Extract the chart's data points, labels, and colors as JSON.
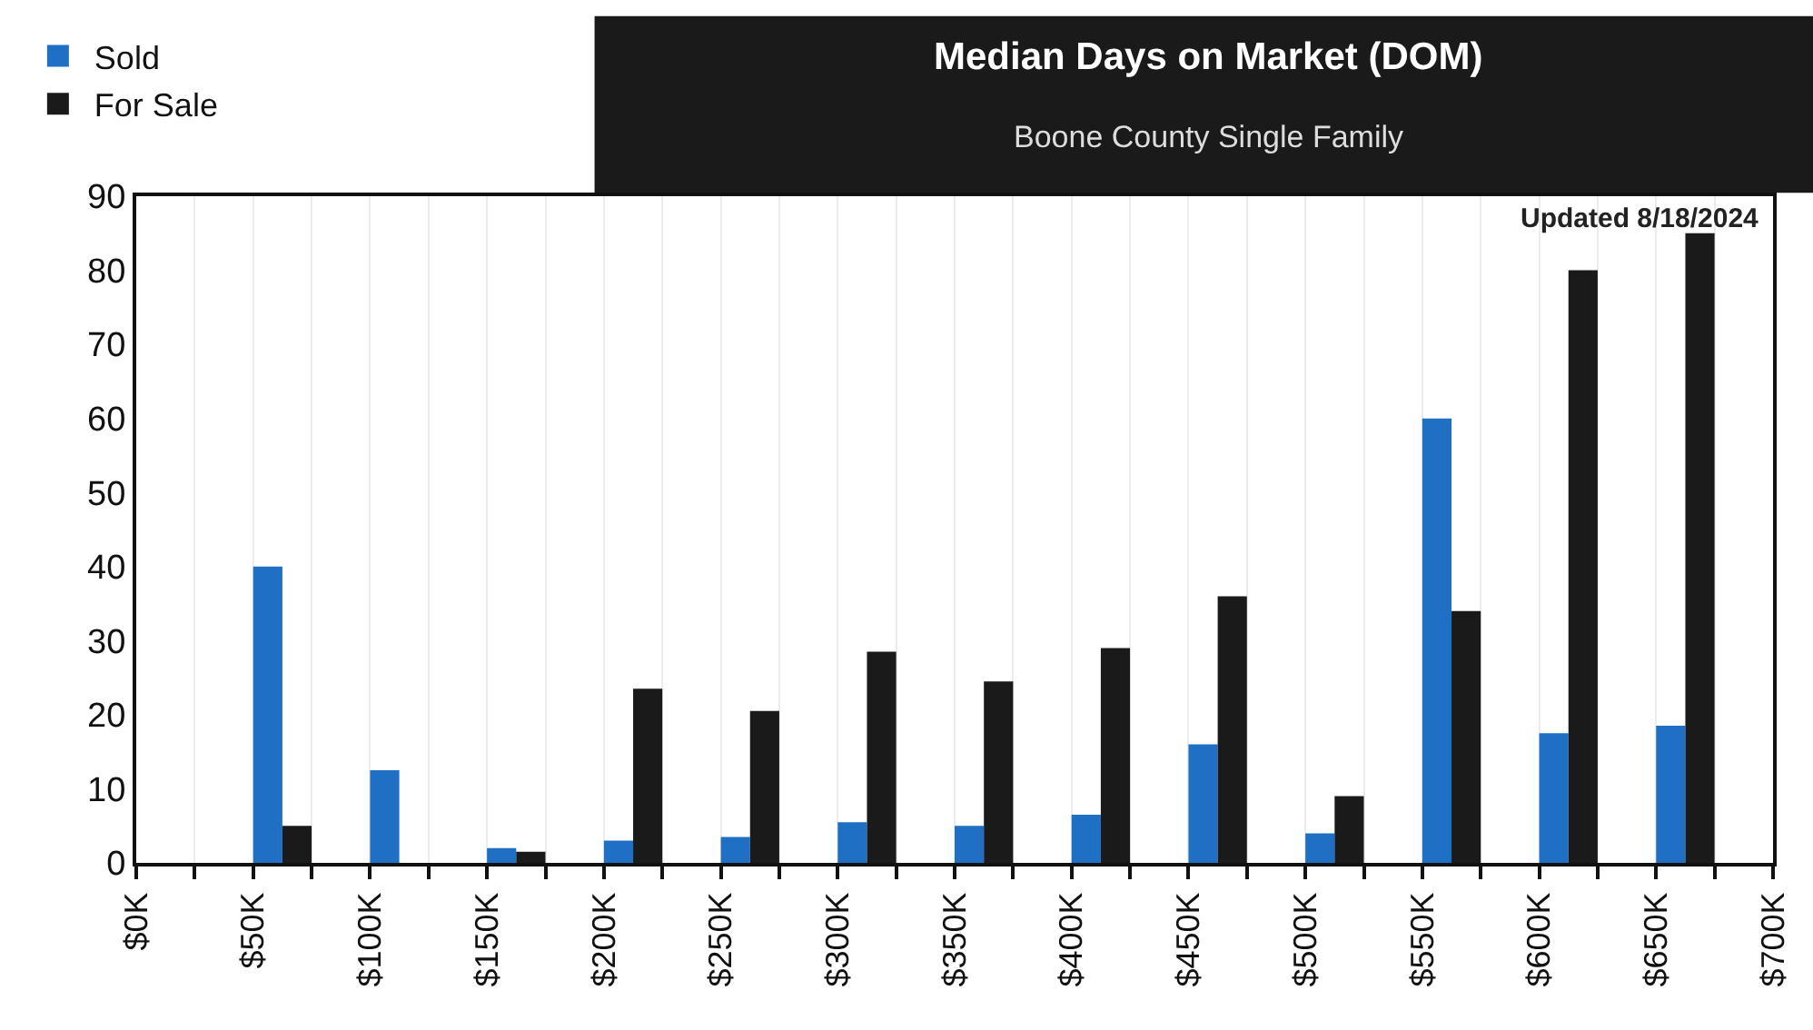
{
  "chart_data": {
    "type": "bar",
    "title": "Median Days on Market (DOM)",
    "subtitle": "Boone County Single Family",
    "annotations": [
      "Updated 8/18/2024"
    ],
    "x": [
      62.5,
      112.5,
      162.5,
      212.5,
      262.5,
      312.5,
      362.5,
      412.5,
      462.5,
      512.5,
      562.5,
      612.5,
      662.5
    ],
    "series": [
      {
        "name": "Sold",
        "color": "#1f6fc4",
        "values": [
          40,
          12.5,
          2,
          3,
          3.5,
          5.5,
          5,
          6.5,
          16,
          4,
          60,
          17.5,
          18.5
        ]
      },
      {
        "name": "For Sale",
        "color": "#1a1a1a",
        "values": [
          5,
          null,
          1.5,
          23.5,
          20.5,
          28.5,
          24.5,
          29,
          36,
          9,
          34,
          80,
          85
        ]
      }
    ],
    "xlim": [
      0,
      700
    ],
    "xticks": [
      {
        "value": 0,
        "label": "$0K"
      },
      {
        "value": 25,
        "label": null
      },
      {
        "value": 50,
        "label": "$50K"
      },
      {
        "value": 75,
        "label": null
      },
      {
        "value": 100,
        "label": "$100K"
      },
      {
        "value": 125,
        "label": null
      },
      {
        "value": 150,
        "label": "$150K"
      },
      {
        "value": 175,
        "label": null
      },
      {
        "value": 200,
        "label": "$200K"
      },
      {
        "value": 225,
        "label": null
      },
      {
        "value": 250,
        "label": "$250K"
      },
      {
        "value": 275,
        "label": null
      },
      {
        "value": 300,
        "label": "$300K"
      },
      {
        "value": 325,
        "label": null
      },
      {
        "value": 350,
        "label": "$350K"
      },
      {
        "value": 375,
        "label": null
      },
      {
        "value": 400,
        "label": "$400K"
      },
      {
        "value": 425,
        "label": null
      },
      {
        "value": 450,
        "label": "$450K"
      },
      {
        "value": 475,
        "label": null
      },
      {
        "value": 500,
        "label": "$500K"
      },
      {
        "value": 525,
        "label": null
      },
      {
        "value": 550,
        "label": "$550K"
      },
      {
        "value": 575,
        "label": null
      },
      {
        "value": 600,
        "label": "$600K"
      },
      {
        "value": 625,
        "label": null
      },
      {
        "value": 650,
        "label": "$650K"
      },
      {
        "value": 675,
        "label": null
      },
      {
        "value": 700,
        "label": "$700K"
      }
    ],
    "ylim": [
      0,
      90
    ],
    "yticks": [
      0,
      10,
      20,
      30,
      40,
      50,
      60,
      70,
      80,
      90
    ],
    "grid": "x",
    "legend": "top left"
  }
}
